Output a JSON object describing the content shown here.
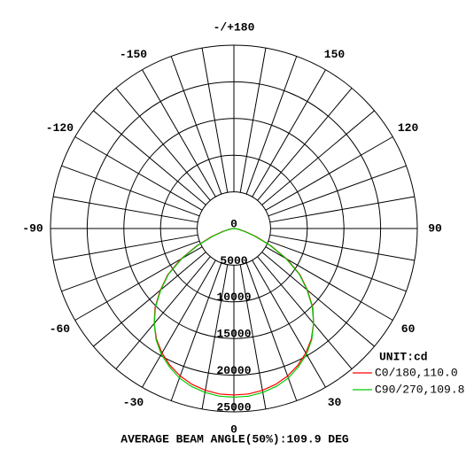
{
  "chart_data": {
    "type": "polar",
    "footer": "AVERAGE BEAM ANGLE(50%):109.9 DEG",
    "unit_label": "UNIT:cd",
    "theta": [
      -90,
      -85,
      -80,
      -75,
      -70,
      -65,
      -60,
      -55,
      -50,
      -45,
      -40,
      -35,
      -30,
      -25,
      -20,
      -15,
      -10,
      -5,
      0,
      5,
      10,
      15,
      20,
      25,
      30,
      35,
      40,
      45,
      50,
      55,
      60,
      65,
      70,
      75,
      80,
      85,
      90
    ],
    "series": [
      {
        "name": "C0/180,110.0",
        "color": "#ff0000",
        "values": [
          0,
          250,
          700,
          1600,
          3200,
          5600,
          8400,
          11000,
          13100,
          15200,
          16900,
          18400,
          19600,
          20600,
          21400,
          22000,
          22400,
          22650,
          22700,
          22650,
          22400,
          22000,
          21400,
          20600,
          19600,
          18400,
          16900,
          15200,
          13100,
          11000,
          8400,
          5600,
          3200,
          1600,
          700,
          250,
          0
        ]
      },
      {
        "name": "C90/270,109.8",
        "color": "#00cc00",
        "values": [
          0,
          200,
          600,
          1400,
          3000,
          5400,
          8200,
          10900,
          13000,
          15100,
          16900,
          18500,
          19800,
          20800,
          21700,
          22300,
          22700,
          22950,
          23000,
          22950,
          22700,
          22300,
          21700,
          20800,
          19800,
          18500,
          16900,
          15100,
          13000,
          10900,
          8200,
          5400,
          3000,
          1400,
          600,
          200,
          0
        ]
      }
    ],
    "rlim": [
      0,
      25000
    ],
    "rticks": [
      0,
      5000,
      10000,
      15000,
      20000,
      25000
    ],
    "theta_grid": [
      0,
      10,
      20,
      30,
      40,
      50,
      60,
      70,
      80,
      90,
      100,
      110,
      120,
      130,
      140,
      150,
      160,
      170,
      180,
      190,
      200,
      210,
      220,
      230,
      240,
      250,
      260,
      270,
      280,
      290,
      300,
      310,
      320,
      330,
      340,
      350
    ],
    "theta_ticks": [
      0,
      30,
      60,
      90,
      120,
      150,
      {
        "value": 180,
        "label": "-/+180"
      },
      -150,
      -120,
      -90,
      -60,
      -30
    ],
    "grid": true
  }
}
